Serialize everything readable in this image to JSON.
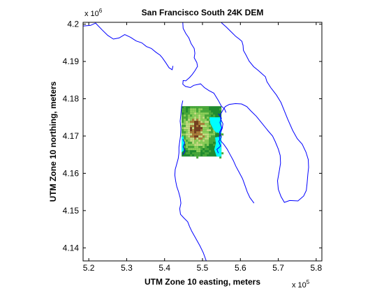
{
  "chart_data": {
    "type": "map",
    "title": "San Francisco South 24K DEM",
    "xlabel": "UTM Zone 10 easting, meters",
    "ylabel": "UTM Zone 10 northing, meters",
    "xlim": [
      518500,
      581500
    ],
    "ylim": [
      4136500,
      4200500
    ],
    "xticks": [
      520000,
      530000,
      540000,
      550000,
      560000,
      570000,
      580000
    ],
    "xtick_labels": [
      "5.2",
      "5.3",
      "5.4",
      "5.5",
      "5.6",
      "5.7",
      "5.8"
    ],
    "yticks": [
      4140000,
      4150000,
      4160000,
      4170000,
      4180000,
      4190000,
      4200000
    ],
    "ytick_labels": [
      "4.14",
      "4.15",
      "4.16",
      "4.17",
      "4.18",
      "4.19",
      "4.2"
    ],
    "x_multiplier": {
      "base": "x 10",
      "exponent": "5"
    },
    "y_multiplier": {
      "base": "x 10",
      "exponent": "6"
    },
    "coastline_color": "#0000ff",
    "dem_extent": {
      "x": [
        544500,
        555000
      ],
      "y": [
        4164500,
        4178000
      ]
    },
    "water_color": "#00ffff",
    "dem_colors": [
      "#1f8a2e",
      "#4aa83a",
      "#8fcf5a",
      "#c8dc82",
      "#b07a3a",
      "#7a3a20"
    ],
    "coastline": [
      [
        [
          518500,
          4199500
        ],
        [
          520500,
          4199700
        ],
        [
          521800,
          4200300
        ],
        [
          523500,
          4198500
        ],
        [
          525000,
          4197000
        ],
        [
          526500,
          4196000
        ],
        [
          528000,
          4196300
        ],
        [
          529500,
          4197200
        ],
        [
          531000,
          4196500
        ],
        [
          532500,
          4195500
        ],
        [
          534000,
          4195000
        ],
        [
          535200,
          4194000
        ],
        [
          536500,
          4193500
        ],
        [
          537700,
          4192500
        ],
        [
          538800,
          4191700
        ],
        [
          539400,
          4191000
        ],
        [
          540300,
          4189700
        ],
        [
          541200,
          4188300
        ],
        [
          542000,
          4187800
        ],
        [
          542200,
          4188800
        ]
      ],
      [
        [
          544800,
          4200400
        ],
        [
          544900,
          4198900
        ],
        [
          545600,
          4197500
        ],
        [
          546400,
          4196300
        ],
        [
          547000,
          4194800
        ],
        [
          547800,
          4193500
        ],
        [
          548000,
          4192200
        ],
        [
          547800,
          4191000
        ],
        [
          548500,
          4189700
        ],
        [
          548700,
          4188700
        ],
        [
          548000,
          4187500
        ],
        [
          547300,
          4186500
        ],
        [
          546600,
          4185700
        ],
        [
          545600,
          4184800
        ],
        [
          544900,
          4184900
        ],
        [
          544800,
          4183900
        ],
        [
          545500,
          4183300
        ],
        [
          546800,
          4183000
        ],
        [
          547700,
          4183600
        ],
        [
          549500,
          4184000
        ],
        [
          550000,
          4183500
        ],
        [
          550500,
          4183000
        ],
        [
          551700,
          4182200
        ],
        [
          553000,
          4181500
        ],
        [
          554200,
          4179500
        ],
        [
          555000,
          4178000
        ],
        [
          555800,
          4177300
        ],
        [
          556200,
          4176300
        ]
      ],
      [
        [
          555000,
          4200400
        ],
        [
          556300,
          4199200
        ],
        [
          557700,
          4197800
        ],
        [
          558800,
          4196700
        ],
        [
          559700,
          4196000
        ],
        [
          560400,
          4195400
        ],
        [
          560700,
          4194300
        ],
        [
          560800,
          4193000
        ],
        [
          561500,
          4191700
        ],
        [
          562300,
          4190100
        ],
        [
          563500,
          4188600
        ],
        [
          564700,
          4187600
        ],
        [
          565800,
          4186600
        ],
        [
          566600,
          4185900
        ],
        [
          567000,
          4184600
        ],
        [
          568000,
          4183000
        ],
        [
          569500,
          4181000
        ],
        [
          570700,
          4179000
        ],
        [
          571500,
          4177000
        ],
        [
          572500,
          4174500
        ],
        [
          573800,
          4171500
        ],
        [
          575000,
          4169300
        ],
        [
          576300,
          4167800
        ],
        [
          577300,
          4165700
        ],
        [
          577900,
          4163700
        ],
        [
          578000,
          4161600
        ],
        [
          577800,
          4159700
        ],
        [
          577600,
          4157300
        ],
        [
          577400,
          4155400
        ],
        [
          576700,
          4153900
        ],
        [
          575200,
          4152600
        ],
        [
          573000,
          4152700
        ],
        [
          571600,
          4152200
        ],
        [
          570700,
          4153800
        ],
        [
          570000,
          4155700
        ],
        [
          569800,
          4158000
        ],
        [
          570200,
          4160300
        ],
        [
          570600,
          4162700
        ],
        [
          570500,
          4164800
        ],
        [
          570000,
          4166500
        ],
        [
          569200,
          4168500
        ],
        [
          568500,
          4170000
        ],
        [
          567300,
          4171400
        ],
        [
          565800,
          4173300
        ],
        [
          564200,
          4175300
        ],
        [
          562700,
          4176800
        ],
        [
          561700,
          4177900
        ],
        [
          560300,
          4178600
        ],
        [
          558700,
          4178700
        ],
        [
          557100,
          4178500
        ],
        [
          556000,
          4177900
        ],
        [
          555300,
          4176800
        ],
        [
          554700,
          4175700
        ],
        [
          554800,
          4174500
        ],
        [
          555400,
          4173300
        ],
        [
          555200,
          4172000
        ],
        [
          554700,
          4170800
        ],
        [
          554400,
          4169800
        ],
        [
          554800,
          4168700
        ],
        [
          555600,
          4167800
        ],
        [
          556500,
          4166500
        ],
        [
          557300,
          4165000
        ],
        [
          558100,
          4163500
        ],
        [
          558800,
          4161900
        ],
        [
          559700,
          4160200
        ],
        [
          560600,
          4158500
        ],
        [
          561300,
          4156500
        ],
        [
          561800,
          4155000
        ],
        [
          562500,
          4153500
        ],
        [
          563600,
          4152000
        ]
      ],
      [
        [
          544800,
          4179500
        ],
        [
          544500,
          4178000
        ],
        [
          544300,
          4176000
        ],
        [
          544100,
          4174000
        ],
        [
          544300,
          4172000
        ],
        [
          544200,
          4170000
        ],
        [
          544000,
          4168500
        ],
        [
          543800,
          4167000
        ],
        [
          543800,
          4165500
        ],
        [
          543600,
          4164000
        ],
        [
          543200,
          4162500
        ],
        [
          542800,
          4161000
        ],
        [
          542700,
          4159500
        ],
        [
          542900,
          4158000
        ],
        [
          543200,
          4156500
        ],
        [
          543700,
          4155000
        ],
        [
          544100,
          4153500
        ],
        [
          544300,
          4152000
        ],
        [
          544000,
          4150500
        ],
        [
          544200,
          4149000
        ],
        [
          545100,
          4148000
        ],
        [
          546100,
          4147000
        ],
        [
          546600,
          4145700
        ],
        [
          547200,
          4144400
        ],
        [
          548200,
          4142600
        ],
        [
          549300,
          4140600
        ],
        [
          550200,
          4138700
        ],
        [
          551000,
          4136500
        ]
      ]
    ],
    "shoreline_fragments": [
      [
        [
          554200,
          4176000
        ],
        [
          555000,
          4174800
        ],
        [
          554600,
          4173600
        ],
        [
          555100,
          4172200
        ],
        [
          554500,
          4171000
        ],
        [
          555000,
          4169800
        ],
        [
          554300,
          4168600
        ],
        [
          554800,
          4167300
        ],
        [
          553800,
          4166400
        ],
        [
          554200,
          4165400
        ]
      ],
      [
        [
          544800,
          4169200
        ],
        [
          545300,
          4168200
        ],
        [
          544900,
          4167100
        ],
        [
          545400,
          4166000
        ],
        [
          544800,
          4165000
        ]
      ]
    ]
  }
}
